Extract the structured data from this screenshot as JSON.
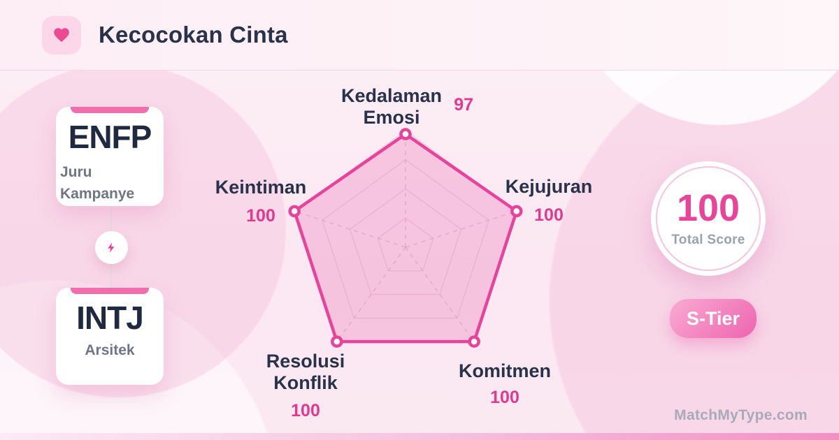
{
  "header": {
    "title": "Kecocokan Cinta"
  },
  "icons": {
    "header": "heart",
    "connector": "lightning-bolt"
  },
  "match": {
    "left": {
      "code": "ENFP",
      "name": "Juru Kampanye"
    },
    "right": {
      "code": "INTJ",
      "name": "Arsitek"
    }
  },
  "chart_data": {
    "type": "radar",
    "categories": [
      "Kedalaman Emosi",
      "Kejujuran",
      "Komitmen",
      "Resolusi Konflik",
      "Keintiman"
    ],
    "values": [
      97,
      100,
      100,
      100,
      100
    ],
    "max": 100,
    "grid": true,
    "grid_levels": 4,
    "legend": false,
    "accent": "#e8439a",
    "fill": "rgba(240,141,196,0.40)",
    "grid_color": "#d9b8cb",
    "axis_color": "#c9a7bd",
    "point_fill": "#ffffff"
  },
  "score": {
    "value": "100",
    "label": "Total Score",
    "tier": "S-Tier"
  },
  "watermark": "MatchMyType.com",
  "colors": {
    "accent": "#e8439a",
    "dark_text": "#28324a",
    "muted_text": "#6e7585",
    "badge_gradient_from": "#f9abd3",
    "badge_gradient_to": "#ee64af"
  }
}
